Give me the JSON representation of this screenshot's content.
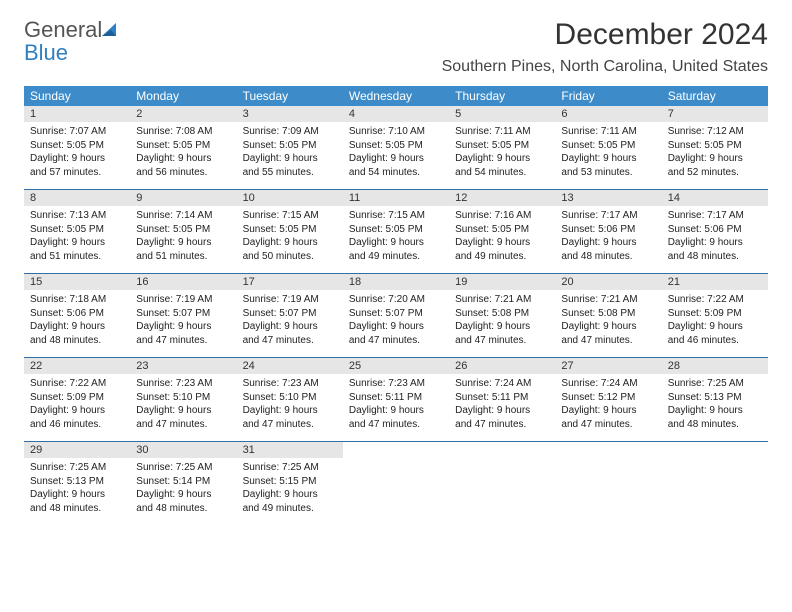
{
  "logo": {
    "general": "General",
    "blue": "Blue"
  },
  "month_title": "December 2024",
  "location": "Southern Pines, North Carolina, United States",
  "weekdays": [
    "Sunday",
    "Monday",
    "Tuesday",
    "Wednesday",
    "Thursday",
    "Friday",
    "Saturday"
  ],
  "colors": {
    "header_bg": "#3d8cc9",
    "week_divider": "#2f6fa8",
    "daynum_bg": "#e6e6e6",
    "logo_blue": "#2f7fc1"
  },
  "weeks": [
    [
      {
        "n": "1",
        "sunrise": "7:07 AM",
        "sunset": "5:05 PM",
        "daylight": "9 hours and 57 minutes."
      },
      {
        "n": "2",
        "sunrise": "7:08 AM",
        "sunset": "5:05 PM",
        "daylight": "9 hours and 56 minutes."
      },
      {
        "n": "3",
        "sunrise": "7:09 AM",
        "sunset": "5:05 PM",
        "daylight": "9 hours and 55 minutes."
      },
      {
        "n": "4",
        "sunrise": "7:10 AM",
        "sunset": "5:05 PM",
        "daylight": "9 hours and 54 minutes."
      },
      {
        "n": "5",
        "sunrise": "7:11 AM",
        "sunset": "5:05 PM",
        "daylight": "9 hours and 54 minutes."
      },
      {
        "n": "6",
        "sunrise": "7:11 AM",
        "sunset": "5:05 PM",
        "daylight": "9 hours and 53 minutes."
      },
      {
        "n": "7",
        "sunrise": "7:12 AM",
        "sunset": "5:05 PM",
        "daylight": "9 hours and 52 minutes."
      }
    ],
    [
      {
        "n": "8",
        "sunrise": "7:13 AM",
        "sunset": "5:05 PM",
        "daylight": "9 hours and 51 minutes."
      },
      {
        "n": "9",
        "sunrise": "7:14 AM",
        "sunset": "5:05 PM",
        "daylight": "9 hours and 51 minutes."
      },
      {
        "n": "10",
        "sunrise": "7:15 AM",
        "sunset": "5:05 PM",
        "daylight": "9 hours and 50 minutes."
      },
      {
        "n": "11",
        "sunrise": "7:15 AM",
        "sunset": "5:05 PM",
        "daylight": "9 hours and 49 minutes."
      },
      {
        "n": "12",
        "sunrise": "7:16 AM",
        "sunset": "5:05 PM",
        "daylight": "9 hours and 49 minutes."
      },
      {
        "n": "13",
        "sunrise": "7:17 AM",
        "sunset": "5:06 PM",
        "daylight": "9 hours and 48 minutes."
      },
      {
        "n": "14",
        "sunrise": "7:17 AM",
        "sunset": "5:06 PM",
        "daylight": "9 hours and 48 minutes."
      }
    ],
    [
      {
        "n": "15",
        "sunrise": "7:18 AM",
        "sunset": "5:06 PM",
        "daylight": "9 hours and 48 minutes."
      },
      {
        "n": "16",
        "sunrise": "7:19 AM",
        "sunset": "5:07 PM",
        "daylight": "9 hours and 47 minutes."
      },
      {
        "n": "17",
        "sunrise": "7:19 AM",
        "sunset": "5:07 PM",
        "daylight": "9 hours and 47 minutes."
      },
      {
        "n": "18",
        "sunrise": "7:20 AM",
        "sunset": "5:07 PM",
        "daylight": "9 hours and 47 minutes."
      },
      {
        "n": "19",
        "sunrise": "7:21 AM",
        "sunset": "5:08 PM",
        "daylight": "9 hours and 47 minutes."
      },
      {
        "n": "20",
        "sunrise": "7:21 AM",
        "sunset": "5:08 PM",
        "daylight": "9 hours and 47 minutes."
      },
      {
        "n": "21",
        "sunrise": "7:22 AM",
        "sunset": "5:09 PM",
        "daylight": "9 hours and 46 minutes."
      }
    ],
    [
      {
        "n": "22",
        "sunrise": "7:22 AM",
        "sunset": "5:09 PM",
        "daylight": "9 hours and 46 minutes."
      },
      {
        "n": "23",
        "sunrise": "7:23 AM",
        "sunset": "5:10 PM",
        "daylight": "9 hours and 47 minutes."
      },
      {
        "n": "24",
        "sunrise": "7:23 AM",
        "sunset": "5:10 PM",
        "daylight": "9 hours and 47 minutes."
      },
      {
        "n": "25",
        "sunrise": "7:23 AM",
        "sunset": "5:11 PM",
        "daylight": "9 hours and 47 minutes."
      },
      {
        "n": "26",
        "sunrise": "7:24 AM",
        "sunset": "5:11 PM",
        "daylight": "9 hours and 47 minutes."
      },
      {
        "n": "27",
        "sunrise": "7:24 AM",
        "sunset": "5:12 PM",
        "daylight": "9 hours and 47 minutes."
      },
      {
        "n": "28",
        "sunrise": "7:25 AM",
        "sunset": "5:13 PM",
        "daylight": "9 hours and 48 minutes."
      }
    ],
    [
      {
        "n": "29",
        "sunrise": "7:25 AM",
        "sunset": "5:13 PM",
        "daylight": "9 hours and 48 minutes."
      },
      {
        "n": "30",
        "sunrise": "7:25 AM",
        "sunset": "5:14 PM",
        "daylight": "9 hours and 48 minutes."
      },
      {
        "n": "31",
        "sunrise": "7:25 AM",
        "sunset": "5:15 PM",
        "daylight": "9 hours and 49 minutes."
      },
      null,
      null,
      null,
      null
    ]
  ],
  "labels": {
    "sunrise": "Sunrise: ",
    "sunset": "Sunset: ",
    "daylight": "Daylight: "
  }
}
